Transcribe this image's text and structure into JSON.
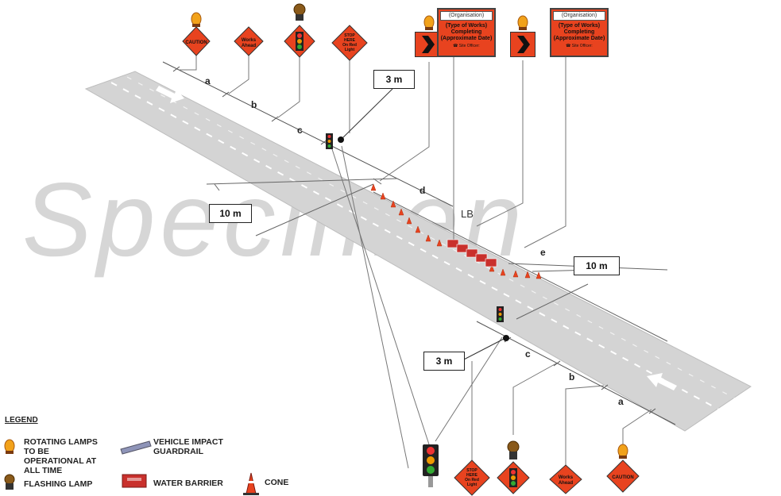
{
  "watermark": "Specimen",
  "boxes": {
    "gap_3m_top": "3 m",
    "gap_3m_bottom": "3 m",
    "gap_10m_left": "10 m",
    "gap_10m_right": "10 m"
  },
  "distances": {
    "a_top": "a",
    "b_top": "b",
    "c_top": "c",
    "d": "d",
    "lb": "LB",
    "e": "e",
    "c_bottom": "c",
    "b_bottom": "b",
    "a_bottom": "a"
  },
  "signs": {
    "caution": "CAUTION",
    "works_ahead_line1": "Works",
    "works_ahead_line2": "Ahead",
    "stop_line1": "STOP",
    "stop_line2": "HERE",
    "stop_line3": "On Red",
    "stop_line4": "Light"
  },
  "panel": {
    "organisation": "(Organisation)",
    "line1": "(Type of Works)",
    "line2": "Completing",
    "line3": "(Approximate Date)",
    "site_officer": "☎ Site Officer:"
  },
  "legend": {
    "title": "LEGEND",
    "rotating_lamp": "ROTATING LAMPS TO BE OPERATIONAL AT ALL TIME",
    "flashing_lamp": "FLASHING LAMP",
    "guardrail": "VEHICLE IMPACT GUARDRAIL",
    "water_barrier": "WATER BARRIER",
    "cone": "CONE"
  },
  "colors": {
    "sign_orange": "#e8431f",
    "road_grey": "#d3d3d3",
    "lamp_amber": "#f2a21a"
  }
}
